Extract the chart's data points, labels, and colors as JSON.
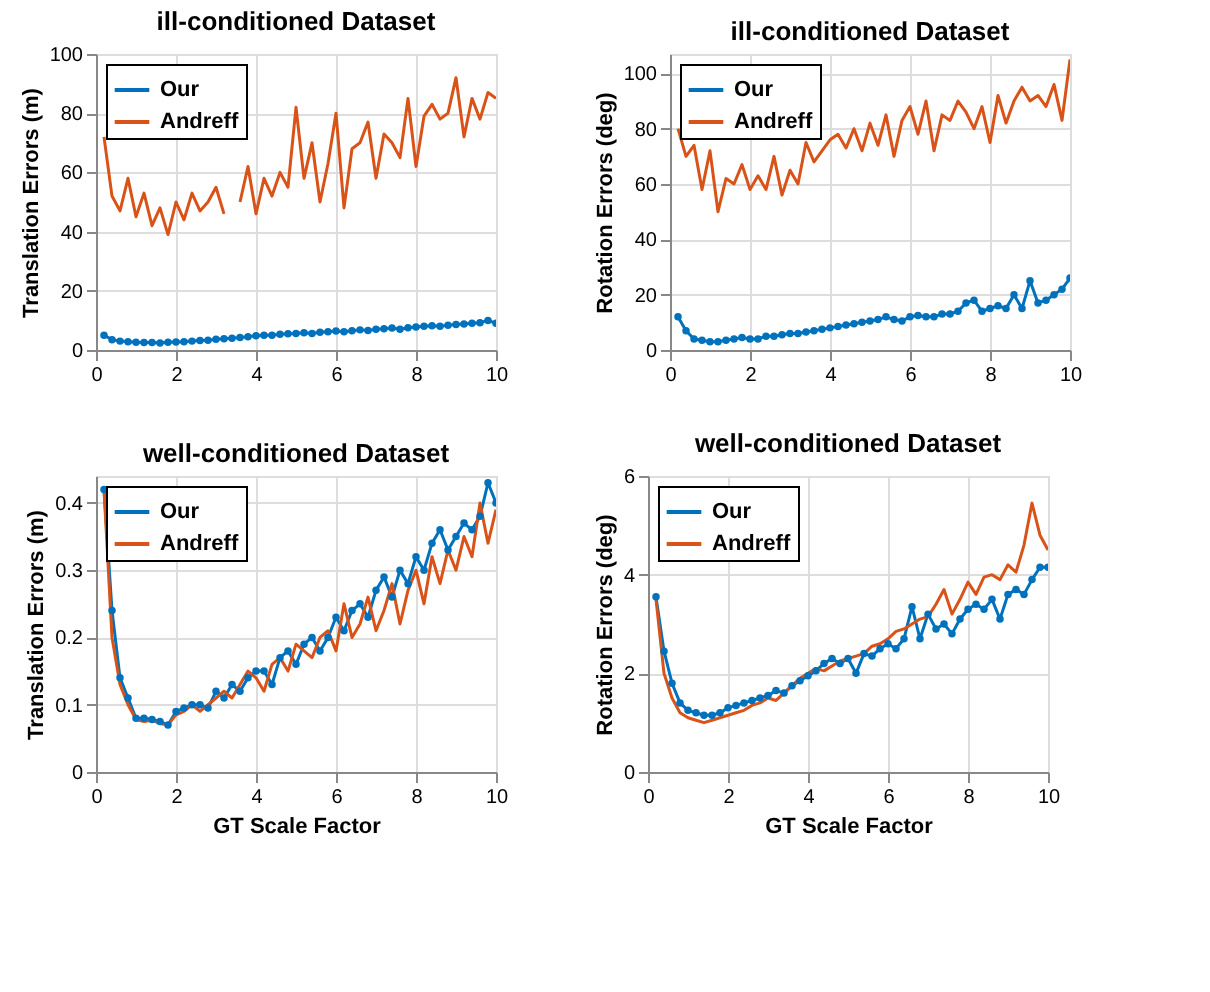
{
  "chart_data": [
    {
      "type": "line",
      "title": "ill-conditioned Dataset",
      "ylabel": "Translation Errors (m)",
      "xlim": [
        0,
        10
      ],
      "xticks": [
        0,
        2,
        4,
        6,
        8,
        10
      ],
      "ylim": [
        0,
        100
      ],
      "yticks": [
        0,
        20,
        40,
        60,
        80,
        100
      ],
      "grid": true,
      "legend": "top left",
      "x": [
        0.2,
        0.4,
        0.6,
        0.8,
        1.0,
        1.2,
        1.4,
        1.6,
        1.8,
        2.0,
        2.2,
        2.4,
        2.6,
        2.8,
        3.0,
        3.2,
        3.4,
        3.6,
        3.8,
        4.0,
        4.2,
        4.4,
        4.6,
        4.8,
        5.0,
        5.2,
        5.4,
        5.6,
        5.8,
        6.0,
        6.2,
        6.4,
        6.6,
        6.8,
        7.0,
        7.2,
        7.4,
        7.6,
        7.8,
        8.0,
        8.2,
        8.4,
        8.6,
        8.8,
        9.0,
        9.2,
        9.4,
        9.6,
        9.8,
        10.0
      ],
      "series": [
        {
          "name": "Our",
          "color": "#0072bd",
          "marker": "circle",
          "values": [
            5,
            3.5,
            3,
            2.8,
            2.6,
            2.5,
            2.5,
            2.4,
            2.6,
            2.7,
            2.8,
            3,
            3.2,
            3.3,
            3.6,
            3.8,
            4,
            4.2,
            4.5,
            4.8,
            5,
            5,
            5.3,
            5.5,
            5.6,
            5.8,
            5.6,
            6,
            6.2,
            6.4,
            6.2,
            6.5,
            6.8,
            6.6,
            7,
            7.2,
            7.4,
            7,
            7.5,
            7.8,
            8,
            8.2,
            8,
            8.4,
            8.6,
            8.8,
            9,
            9.2,
            10,
            9
          ]
        },
        {
          "name": "Andreff",
          "color": "#d95319",
          "marker": "none",
          "values": [
            72,
            52,
            47,
            58,
            45,
            53,
            42,
            48,
            39,
            50,
            44,
            53,
            47,
            50,
            55,
            46,
            null,
            50,
            62,
            46,
            58,
            52,
            60,
            55,
            82,
            58,
            70,
            50,
            63,
            80,
            48,
            68,
            70,
            77,
            58,
            73,
            70,
            65,
            85,
            62,
            79,
            83,
            78,
            80,
            92,
            72,
            85,
            78,
            87,
            85
          ]
        }
      ]
    },
    {
      "type": "line",
      "title": "ill-conditioned Dataset",
      "ylabel": "Rotation Errors (deg)",
      "xlim": [
        0,
        10
      ],
      "xticks": [
        0,
        2,
        4,
        6,
        8,
        10
      ],
      "ylim": [
        0,
        107
      ],
      "yticks": [
        0,
        20,
        40,
        60,
        80,
        100
      ],
      "grid": true,
      "legend": "top left",
      "x": [
        0.2,
        0.4,
        0.6,
        0.8,
        1.0,
        1.2,
        1.4,
        1.6,
        1.8,
        2.0,
        2.2,
        2.4,
        2.6,
        2.8,
        3.0,
        3.2,
        3.4,
        3.6,
        3.8,
        4.0,
        4.2,
        4.4,
        4.6,
        4.8,
        5.0,
        5.2,
        5.4,
        5.6,
        5.8,
        6.0,
        6.2,
        6.4,
        6.6,
        6.8,
        7.0,
        7.2,
        7.4,
        7.6,
        7.8,
        8.0,
        8.2,
        8.4,
        8.6,
        8.8,
        9.0,
        9.2,
        9.4,
        9.6,
        9.8,
        10.0
      ],
      "series": [
        {
          "name": "Our",
          "color": "#0072bd",
          "marker": "circle",
          "values": [
            12,
            7,
            4,
            3.5,
            3,
            3,
            3.5,
            4,
            4.5,
            4,
            4,
            5,
            5,
            5.5,
            6,
            6,
            6.5,
            7,
            7.5,
            8,
            8.5,
            9,
            9.5,
            10,
            10.5,
            11,
            12,
            11,
            10.5,
            12,
            12.5,
            12,
            12,
            13,
            13,
            14,
            17,
            18,
            14,
            15,
            16,
            15,
            20,
            15,
            25,
            17,
            18,
            20,
            22,
            26
          ]
        },
        {
          "name": "Andreff",
          "color": "#d95319",
          "marker": "none",
          "values": [
            80,
            70,
            74,
            58,
            72,
            50,
            62,
            60,
            67,
            58,
            63,
            58,
            70,
            56,
            65,
            60,
            75,
            68,
            72,
            76,
            78,
            73,
            80,
            72,
            82,
            74,
            85,
            70,
            83,
            88,
            78,
            90,
            72,
            85,
            83,
            90,
            86,
            80,
            88,
            75,
            92,
            82,
            90,
            95,
            90,
            92,
            88,
            96,
            83,
            105
          ]
        }
      ]
    },
    {
      "type": "line",
      "title": "well-conditioned Dataset",
      "xlabel": "GT Scale Factor",
      "ylabel": "Translation Errors (m)",
      "xlim": [
        0,
        10
      ],
      "xticks": [
        0,
        2,
        4,
        6,
        8,
        10
      ],
      "ylim": [
        0,
        0.44
      ],
      "yticks": [
        0,
        0.1,
        0.2,
        0.3,
        0.4
      ],
      "grid": true,
      "legend": "top left",
      "x": [
        0.2,
        0.4,
        0.6,
        0.8,
        1.0,
        1.2,
        1.4,
        1.6,
        1.8,
        2.0,
        2.2,
        2.4,
        2.6,
        2.8,
        3.0,
        3.2,
        3.4,
        3.6,
        3.8,
        4.0,
        4.2,
        4.4,
        4.6,
        4.8,
        5.0,
        5.2,
        5.4,
        5.6,
        5.8,
        6.0,
        6.2,
        6.4,
        6.6,
        6.8,
        7.0,
        7.2,
        7.4,
        7.6,
        7.8,
        8.0,
        8.2,
        8.4,
        8.6,
        8.8,
        9.0,
        9.2,
        9.4,
        9.6,
        9.8,
        10.0
      ],
      "series": [
        {
          "name": "Our",
          "color": "#0072bd",
          "marker": "circle",
          "values": [
            0.42,
            0.24,
            0.14,
            0.11,
            0.08,
            0.08,
            0.078,
            0.075,
            0.07,
            0.09,
            0.095,
            0.1,
            0.1,
            0.095,
            0.12,
            0.11,
            0.13,
            0.12,
            0.14,
            0.15,
            0.15,
            0.13,
            0.17,
            0.18,
            0.16,
            0.19,
            0.2,
            0.18,
            0.2,
            0.23,
            0.21,
            0.24,
            0.25,
            0.23,
            0.27,
            0.29,
            0.26,
            0.3,
            0.28,
            0.32,
            0.3,
            0.34,
            0.36,
            0.33,
            0.35,
            0.37,
            0.36,
            0.38,
            0.43,
            0.4
          ]
        },
        {
          "name": "Andreff",
          "color": "#d95319",
          "marker": "none",
          "values": [
            0.42,
            0.2,
            0.13,
            0.1,
            0.078,
            0.075,
            0.077,
            0.072,
            0.07,
            0.085,
            0.09,
            0.1,
            0.09,
            0.1,
            0.11,
            0.12,
            0.11,
            0.13,
            0.15,
            0.14,
            0.12,
            0.16,
            0.17,
            0.15,
            0.19,
            0.18,
            0.17,
            0.2,
            0.21,
            0.18,
            0.25,
            0.2,
            0.22,
            0.26,
            0.21,
            0.24,
            0.28,
            0.22,
            0.27,
            0.3,
            0.25,
            0.32,
            0.28,
            0.33,
            0.3,
            0.35,
            0.32,
            0.4,
            0.34,
            0.39
          ]
        }
      ]
    },
    {
      "type": "line",
      "title": "well-conditioned Dataset",
      "xlabel": "GT Scale Factor",
      "ylabel": "Rotation Errors (deg)",
      "xlim": [
        0,
        10
      ],
      "xticks": [
        0,
        2,
        4,
        6,
        8,
        10
      ],
      "ylim": [
        0,
        6
      ],
      "yticks": [
        0,
        2,
        4,
        6
      ],
      "grid": true,
      "legend": "top left",
      "x": [
        0.2,
        0.4,
        0.6,
        0.8,
        1.0,
        1.2,
        1.4,
        1.6,
        1.8,
        2.0,
        2.2,
        2.4,
        2.6,
        2.8,
        3.0,
        3.2,
        3.4,
        3.6,
        3.8,
        4.0,
        4.2,
        4.4,
        4.6,
        4.8,
        5.0,
        5.2,
        5.4,
        5.6,
        5.8,
        6.0,
        6.2,
        6.4,
        6.6,
        6.8,
        7.0,
        7.2,
        7.4,
        7.6,
        7.8,
        8.0,
        8.2,
        8.4,
        8.6,
        8.8,
        9.0,
        9.2,
        9.4,
        9.6,
        9.8,
        10.0
      ],
      "series": [
        {
          "name": "Our",
          "color": "#0072bd",
          "marker": "circle",
          "values": [
            3.55,
            2.45,
            1.8,
            1.4,
            1.25,
            1.2,
            1.15,
            1.15,
            1.2,
            1.3,
            1.35,
            1.4,
            1.45,
            1.5,
            1.55,
            1.65,
            1.6,
            1.75,
            1.85,
            1.95,
            2.05,
            2.2,
            2.3,
            2.2,
            2.3,
            2.0,
            2.4,
            2.35,
            2.5,
            2.6,
            2.5,
            2.7,
            3.35,
            2.7,
            3.2,
            2.9,
            3.0,
            2.8,
            3.1,
            3.3,
            3.4,
            3.3,
            3.5,
            3.1,
            3.6,
            3.7,
            3.6,
            3.9,
            4.15,
            4.15
          ]
        },
        {
          "name": "Andreff",
          "color": "#d95319",
          "marker": "none",
          "values": [
            3.5,
            2.0,
            1.5,
            1.2,
            1.1,
            1.05,
            1.0,
            1.05,
            1.1,
            1.15,
            1.2,
            1.25,
            1.35,
            1.4,
            1.5,
            1.45,
            1.6,
            1.75,
            1.9,
            2.0,
            2.1,
            2.05,
            2.15,
            2.25,
            2.3,
            2.35,
            2.4,
            2.55,
            2.6,
            2.7,
            2.85,
            2.9,
            3.0,
            3.1,
            3.15,
            3.4,
            3.7,
            3.2,
            3.5,
            3.85,
            3.6,
            3.95,
            4.0,
            3.9,
            4.2,
            4.05,
            4.6,
            5.45,
            4.8,
            4.5
          ]
        }
      ]
    }
  ]
}
